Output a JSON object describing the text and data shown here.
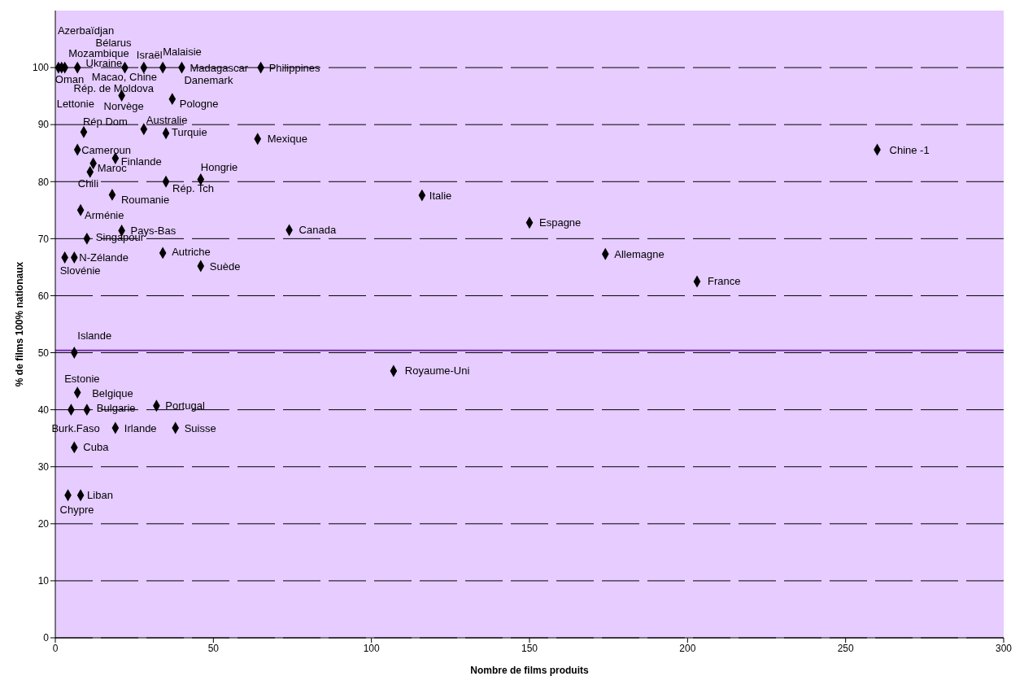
{
  "chart_data": {
    "type": "scatter",
    "xlabel": "Nombre de films produits",
    "ylabel": "% de films 100% nationaux",
    "x": [
      1,
      2,
      3,
      7,
      22,
      28,
      34,
      40,
      65,
      21,
      37,
      9,
      28,
      35,
      64,
      7,
      19,
      12,
      11,
      35,
      46,
      18,
      8,
      21,
      10,
      74,
      34,
      46,
      3,
      6,
      6,
      7,
      5,
      10,
      32,
      19,
      38,
      6,
      4,
      8,
      107,
      116,
      150,
      174,
      203,
      260
    ],
    "series": [
      {
        "color": "#000000",
        "values": [
          100,
          100,
          100,
          100,
          100,
          100,
          100,
          100,
          100,
          95.1,
          94.5,
          88.7,
          89.2,
          88.5,
          87.5,
          85.6,
          84.1,
          83.2,
          81.7,
          80,
          80.4,
          77.7,
          75,
          71.4,
          70,
          71.5,
          67.5,
          65.2,
          66.7,
          66.7,
          50,
          43,
          40,
          40,
          40.7,
          36.8,
          36.8,
          33.4,
          25,
          25,
          46.8,
          77.6,
          72.8,
          67.3,
          62.5,
          85.6
        ]
      }
    ],
    "marker": "diamond",
    "xlim": [
      0,
      300
    ],
    "xticks": [
      0,
      50,
      100,
      150,
      200,
      250,
      300
    ],
    "ylim": [
      0,
      110
    ],
    "yticks": [
      0,
      10,
      20,
      30,
      40,
      50,
      60,
      70,
      80,
      90,
      100
    ],
    "grid": "y",
    "ref_lines": [
      {
        "axis": "y",
        "value": 50.4,
        "color": "#7030a0"
      }
    ],
    "annotations": [
      {
        "text": "Azerbaïdjan",
        "x": 1,
        "y": 100
      },
      {
        "text": "Bélarus",
        "x": 22,
        "y": 100
      },
      {
        "text": "Mozambique",
        "x": 7,
        "y": 100
      },
      {
        "text": "Israël",
        "x": 28,
        "y": 100
      },
      {
        "text": "Malaisie",
        "x": 34,
        "y": 100
      },
      {
        "text": "Ukraine",
        "x": 22,
        "y": 100
      },
      {
        "text": "Madagascar",
        "x": 40,
        "y": 100
      },
      {
        "text": "Philippines",
        "x": 65,
        "y": 100
      },
      {
        "text": "Oman",
        "x": 2,
        "y": 100
      },
      {
        "text": "Macao, Chine",
        "x": 28,
        "y": 100
      },
      {
        "text": "Danemark",
        "x": 40,
        "y": 100
      },
      {
        "text": "Rép. de Moldova",
        "x": 21,
        "y": 95.1
      },
      {
        "text": "Norvège",
        "x": 21,
        "y": 95.1
      },
      {
        "text": "Pologne",
        "x": 37,
        "y": 94.5
      },
      {
        "text": "Lettonie",
        "x": 3,
        "y": 100
      },
      {
        "text": "Rép Dom",
        "x": 9,
        "y": 88.7
      },
      {
        "text": "Australie",
        "x": 28,
        "y": 89.2
      },
      {
        "text": "Turquie",
        "x": 35,
        "y": 88.5
      },
      {
        "text": "Mexique",
        "x": 64,
        "y": 87.5
      },
      {
        "text": "Cameroun",
        "x": 7,
        "y": 85.6
      },
      {
        "text": "Finlande",
        "x": 19,
        "y": 84.1
      },
      {
        "text": "Maroc",
        "x": 12,
        "y": 83.2
      },
      {
        "text": "Chili",
        "x": 11,
        "y": 81.7
      },
      {
        "text": "Hongrie",
        "x": 46,
        "y": 80.4
      },
      {
        "text": "Rép. Tch",
        "x": 35,
        "y": 80
      },
      {
        "text": "Roumanie",
        "x": 18,
        "y": 77.7
      },
      {
        "text": "Italie",
        "x": 116,
        "y": 77.6
      },
      {
        "text": "Arménie",
        "x": 8,
        "y": 75
      },
      {
        "text": "Pays-Bas",
        "x": 21,
        "y": 71.4
      },
      {
        "text": "Singapour",
        "x": 10,
        "y": 70
      },
      {
        "text": "Canada",
        "x": 74,
        "y": 71.5
      },
      {
        "text": "Espagne",
        "x": 150,
        "y": 72.8
      },
      {
        "text": "Autriche",
        "x": 34,
        "y": 67.5
      },
      {
        "text": "N-Zélande",
        "x": 6,
        "y": 66.7
      },
      {
        "text": "Slovénie",
        "x": 3,
        "y": 66.7
      },
      {
        "text": "Suède",
        "x": 46,
        "y": 65.2
      },
      {
        "text": "Allemagne",
        "x": 174,
        "y": 67.3
      },
      {
        "text": "France",
        "x": 203,
        "y": 62.5
      },
      {
        "text": "Chine -1",
        "x": 260,
        "y": 85.6
      },
      {
        "text": "Islande",
        "x": 6,
        "y": 50
      },
      {
        "text": "Royaume-Uni",
        "x": 107,
        "y": 46.8
      },
      {
        "text": "Estonie",
        "x": 7,
        "y": 43
      },
      {
        "text": "Belgique",
        "x": 7,
        "y": 43
      },
      {
        "text": "Bulgarie",
        "x": 10,
        "y": 40
      },
      {
        "text": "Portugal",
        "x": 32,
        "y": 40.7
      },
      {
        "text": "Burk.Faso",
        "x": 5,
        "y": 40
      },
      {
        "text": "Irlande",
        "x": 19,
        "y": 36.8
      },
      {
        "text": "Suisse",
        "x": 38,
        "y": 36.8
      },
      {
        "text": "Cuba",
        "x": 6,
        "y": 33.4
      },
      {
        "text": "Liban",
        "x": 8,
        "y": 25
      },
      {
        "text": "Chypre",
        "x": 4,
        "y": 25
      }
    ]
  }
}
